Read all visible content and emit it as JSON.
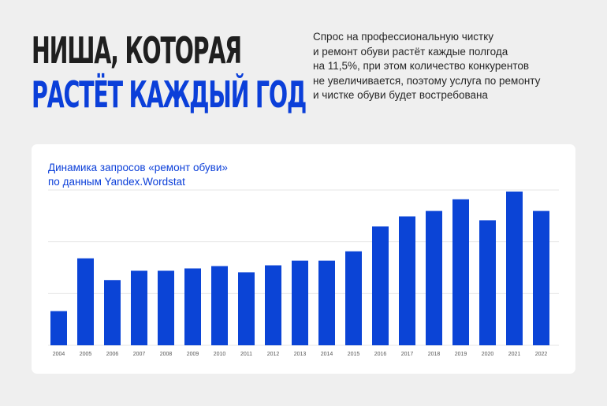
{
  "headline": {
    "line1": "НИША, КОТОРАЯ",
    "line2": "РАСТЁТ КАЖДЫЙ  ГОД"
  },
  "description": {
    "lines": [
      "Спрос на профессиональную чистку",
      "и ремонт обуви растёт каждые полгода",
      "на 11,5%, при этом количество конкурентов",
      "не увеличивается, поэтому услуга по ремонту",
      "и чистке обуви будет востребована"
    ]
  },
  "chart_data": {
    "type": "bar",
    "title_lines": [
      "Динамика запросов «ремонт обуви»",
      "по данным Yandex.Wordstat"
    ],
    "categories": [
      "2004",
      "2005",
      "2006",
      "2007",
      "2008",
      "2009",
      "2010",
      "2011",
      "2012",
      "2013",
      "2014",
      "2015",
      "2016",
      "2017",
      "2018",
      "2019",
      "2020",
      "2021",
      "2022"
    ],
    "values": [
      22,
      56,
      42,
      48,
      48,
      49.5,
      51,
      47,
      51.5,
      54.5,
      54.5,
      60.5,
      76.5,
      83,
      86.5,
      94,
      80.5,
      99,
      86.5
    ],
    "ylim": [
      0,
      100
    ],
    "gridlines": [
      0,
      33.3,
      66.7,
      100
    ],
    "grid": true,
    "legend": "none",
    "bar_color": "#0b44d6",
    "grid_color": "#e6e6e6"
  }
}
